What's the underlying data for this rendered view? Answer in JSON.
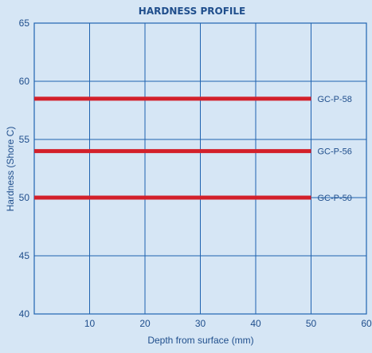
{
  "chart_data": {
    "type": "line",
    "title": "HARDNESS PROFILE",
    "xlabel": "Depth from surface (mm)",
    "ylabel": "Hardness (Shore C)",
    "xlim": [
      0,
      60
    ],
    "ylim": [
      40,
      65
    ],
    "x_ticks": [
      "10",
      "20",
      "30",
      "40",
      "50",
      "60"
    ],
    "y_ticks": [
      "40",
      "45",
      "50",
      "55",
      "60",
      "65"
    ],
    "grid": true,
    "series": [
      {
        "name": "GC-P-58",
        "x": [
          0,
          50
        ],
        "y": [
          58.5,
          58.5
        ]
      },
      {
        "name": "GC-P-56",
        "x": [
          0,
          50
        ],
        "y": [
          54,
          54
        ]
      },
      {
        "name": "GC-P-50",
        "x": [
          0,
          50
        ],
        "y": [
          50,
          50
        ]
      }
    ],
    "colors": {
      "background": "#d6e6f5",
      "grid": "#1f63b0",
      "text": "#1f4e8c",
      "series": "#d3202a"
    }
  }
}
